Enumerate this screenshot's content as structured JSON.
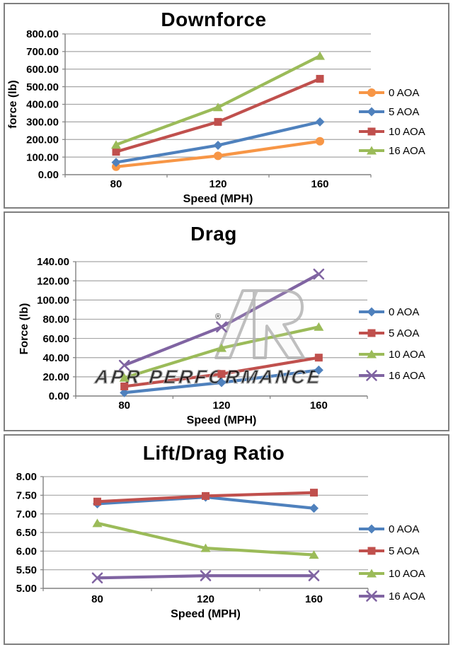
{
  "page": {
    "background": "#ffffff",
    "panel_border_color": "#7f7f7f",
    "gridline_color": "#a6a6a6",
    "axis_color": "#808080",
    "text_color": "#000000"
  },
  "chart_data": [
    {
      "type": "line",
      "title": "Downforce",
      "xlabel": "Speed (MPH)",
      "ylabel": "force (lb)",
      "categories": [
        "80",
        "120",
        "160"
      ],
      "ylim": [
        0,
        800
      ],
      "ytick_step": 100,
      "yticks": [
        "0.00",
        "100.00",
        "200.00",
        "300.00",
        "400.00",
        "500.00",
        "600.00",
        "700.00",
        "800.00"
      ],
      "grid": true,
      "legend_position": "right",
      "series": [
        {
          "name": "0 AOA",
          "color": "#F79646",
          "marker": "circle",
          "values": [
            45,
            107,
            190
          ]
        },
        {
          "name": "5 AOA",
          "color": "#4F81BD",
          "marker": "diamond",
          "values": [
            70,
            167,
            300
          ]
        },
        {
          "name": "10 AOA",
          "color": "#C0504D",
          "marker": "square",
          "values": [
            130,
            300,
            545
          ]
        },
        {
          "name": "16 AOA",
          "color": "#9BBB59",
          "marker": "triangle",
          "values": [
            170,
            383,
            675
          ]
        }
      ]
    },
    {
      "type": "line",
      "title": "Drag",
      "xlabel": "Speed (MPH)",
      "ylabel": "Force (lb)",
      "categories": [
        "80",
        "120",
        "160"
      ],
      "ylim": [
        0,
        140
      ],
      "ytick_step": 20,
      "yticks": [
        "0.00",
        "20.00",
        "40.00",
        "60.00",
        "80.00",
        "100.00",
        "120.00",
        "140.00"
      ],
      "grid": true,
      "legend_position": "right",
      "watermark": "APR PERFORMANCE",
      "series": [
        {
          "name": "0 AOA",
          "color": "#4F81BD",
          "marker": "diamond",
          "values": [
            3.5,
            14,
            27
          ]
        },
        {
          "name": "5 AOA",
          "color": "#C0504D",
          "marker": "square",
          "values": [
            10,
            23,
            40
          ]
        },
        {
          "name": "10 AOA",
          "color": "#9BBB59",
          "marker": "triangle",
          "values": [
            19,
            50,
            72
          ]
        },
        {
          "name": "16 AOA",
          "color": "#8064A2",
          "marker": "x",
          "values": [
            32,
            72,
            127
          ]
        }
      ]
    },
    {
      "type": "line",
      "title": "Lift/Drag Ratio",
      "xlabel": "Speed (MPH)",
      "ylabel": "",
      "categories": [
        "80",
        "120",
        "160"
      ],
      "ylim": [
        5,
        8
      ],
      "ytick_step": 0.5,
      "yticks": [
        "5.00",
        "5.50",
        "6.00",
        "6.50",
        "7.00",
        "7.50",
        "8.00"
      ],
      "grid": true,
      "legend_position": "right",
      "series": [
        {
          "name": "0 AOA",
          "color": "#4F81BD",
          "marker": "diamond",
          "values": [
            7.27,
            7.45,
            7.15
          ]
        },
        {
          "name": "5 AOA",
          "color": "#C0504D",
          "marker": "square",
          "values": [
            7.33,
            7.48,
            7.57
          ]
        },
        {
          "name": "10 AOA",
          "color": "#9BBB59",
          "marker": "triangle",
          "values": [
            6.75,
            6.08,
            5.9
          ]
        },
        {
          "name": "16 AOA",
          "color": "#8064A2",
          "marker": "x",
          "values": [
            5.28,
            5.34,
            5.34
          ]
        }
      ]
    }
  ]
}
